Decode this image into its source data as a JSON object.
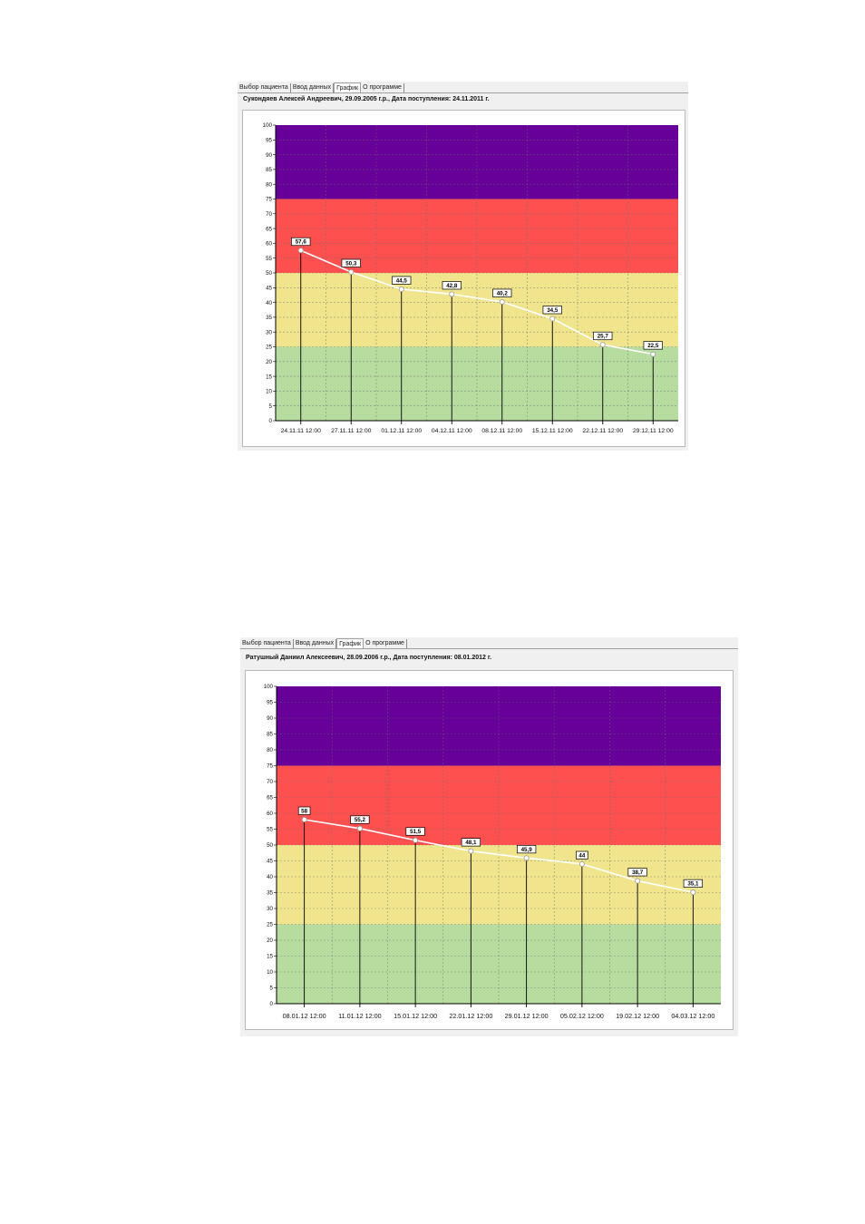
{
  "windows": [
    {
      "tabs": [
        "Выбор пациента",
        "Ввод данных",
        "График",
        "О программе"
      ],
      "active_tab": 2,
      "header": "Сукондяев Алексей  Андреевич, 29.09.2005 г.р., Дата поступления: 24.11.2011 г."
    },
    {
      "tabs": [
        "Выбор пациента",
        "Ввод данных",
        "График",
        "О программе"
      ],
      "active_tab": 2,
      "header": "Ратушный Даниил Алексеевич, 28.09.2006 г.р., Дата поступления: 08.01.2012 г."
    }
  ],
  "chart_data": [
    {
      "type": "line",
      "ylim": [
        0,
        100
      ],
      "yticks": [
        0,
        5,
        10,
        15,
        20,
        25,
        30,
        35,
        40,
        45,
        50,
        55,
        60,
        65,
        70,
        75,
        80,
        85,
        90,
        95,
        100
      ],
      "bands": [
        {
          "from": 0,
          "to": 25,
          "color": "#b7dca0"
        },
        {
          "from": 25,
          "to": 50,
          "color": "#f0e48c"
        },
        {
          "from": 50,
          "to": 75,
          "color": "#ff5050"
        },
        {
          "from": 75,
          "to": 100,
          "color": "#660099"
        }
      ],
      "line_color": "#ffffff",
      "grid": true,
      "x": [
        "24.11.11 12:00",
        "27.11.11 12:00",
        "01.12.11 12:00",
        "04.12.11 12:00",
        "08.12.11 12:00",
        "15.12.11 12:00",
        "22.12.11 12:00",
        "29.12.11 12:00"
      ],
      "values": [
        57.6,
        50.3,
        44.5,
        42.8,
        40.2,
        34.5,
        25.7,
        22.5
      ],
      "labels": [
        "57,6",
        "50,3",
        "44,5",
        "42,8",
        "40,2",
        "34,5",
        "25,7",
        "22,5"
      ]
    },
    {
      "type": "line",
      "ylim": [
        0,
        100
      ],
      "yticks": [
        0,
        5,
        10,
        15,
        20,
        25,
        30,
        35,
        40,
        45,
        50,
        55,
        60,
        65,
        70,
        75,
        80,
        85,
        90,
        95,
        100
      ],
      "bands": [
        {
          "from": 0,
          "to": 25,
          "color": "#b7dca0"
        },
        {
          "from": 25,
          "to": 50,
          "color": "#f0e48c"
        },
        {
          "from": 50,
          "to": 75,
          "color": "#ff5050"
        },
        {
          "from": 75,
          "to": 100,
          "color": "#660099"
        }
      ],
      "line_color": "#ffffff",
      "grid": true,
      "x": [
        "08.01.12 12:00",
        "11.01.12 12:00",
        "15.01.12 12:00",
        "22.01.12 12:00",
        "29.01.12 12:00",
        "05.02.12 12:00",
        "19.02.12 12:00",
        "04.03.12 12:00"
      ],
      "values": [
        58,
        55.2,
        51.5,
        48.1,
        45.9,
        44,
        38.7,
        35.1
      ],
      "labels": [
        "58",
        "55,2",
        "51,5",
        "48,1",
        "45,9",
        "44",
        "38,7",
        "35,1"
      ]
    }
  ]
}
